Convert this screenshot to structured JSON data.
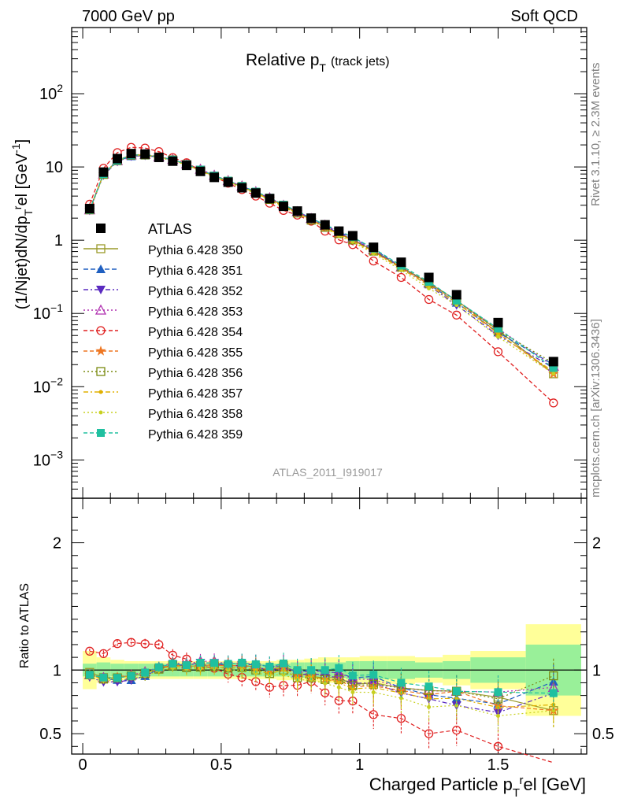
{
  "header": {
    "left": "7000 GeV pp",
    "right": "Soft QCD",
    "side_top": "Rivet 3.1.10, ≥ 2.3M events",
    "side_bottom": "mcplots.cern.ch [arXiv:1306.3436]"
  },
  "chart_data": {
    "type": "line",
    "title": "Relative p",
    "title_sub": "T",
    "title_note": "(track jets)",
    "ylabel": "(1/Njet)dN/dp",
    "ylabel_sub": "T",
    "ylabel_sup": "r",
    "ylabel_tail": "el [GeV",
    "ylabel_tail_sup": "-1",
    "ylabel_end": "]",
    "xlabel": "Charged Particle p",
    "xlabel_sub": "T",
    "xlabel_sup": "r",
    "xlabel_tail": "el [GeV]",
    "ratio_ylabel": "Ratio to ATLAS",
    "analysis_tag": "ATLAS_2011_I919017",
    "xlim": [
      -0.04,
      1.82
    ],
    "ylim_main": [
      0.0003,
      800
    ],
    "ylim_ratio": [
      0.34,
      2.35
    ],
    "yscale_main": "log",
    "x_ticks": [
      "0",
      "0.5",
      "1",
      "1.5"
    ],
    "y_ticks_main": [
      {
        "base": "10",
        "exp": "2"
      },
      {
        "base": "10",
        "exp": ""
      },
      {
        "base": "1",
        "exp": ""
      },
      {
        "base": "10",
        "exp": "−1"
      },
      {
        "base": "10",
        "exp": "−2"
      },
      {
        "base": "10",
        "exp": "−3"
      }
    ],
    "y_ticks_ratio": [
      "2",
      "1",
      "0.5"
    ],
    "legend_position": "left",
    "x": [
      0.025,
      0.075,
      0.125,
      0.175,
      0.225,
      0.275,
      0.325,
      0.375,
      0.425,
      0.475,
      0.525,
      0.575,
      0.625,
      0.675,
      0.725,
      0.775,
      0.825,
      0.875,
      0.925,
      0.975,
      1.05,
      1.15,
      1.25,
      1.35,
      1.5,
      1.7
    ],
    "data": {
      "name": "ATLAS",
      "color": "#000000",
      "values": [
        2.7,
        8.5,
        13.0,
        15.2,
        15.0,
        13.5,
        12.0,
        10.5,
        8.7,
        7.2,
        6.2,
        5.2,
        4.4,
        3.7,
        2.9,
        2.5,
        2.0,
        1.62,
        1.33,
        1.15,
        0.8,
        0.5,
        0.31,
        0.18,
        0.075,
        0.022
      ]
    },
    "band_x_edges": [
      0.0,
      0.05,
      0.1,
      0.15,
      0.2,
      0.25,
      0.3,
      0.35,
      0.4,
      0.45,
      0.5,
      0.55,
      0.6,
      0.65,
      0.7,
      0.75,
      0.8,
      0.85,
      0.9,
      0.95,
      1.0,
      1.1,
      1.2,
      1.3,
      1.4,
      1.6,
      1.8
    ],
    "band_stat": [
      0.05,
      0.06,
      0.05,
      0.05,
      0.05,
      0.05,
      0.05,
      0.05,
      0.05,
      0.05,
      0.05,
      0.05,
      0.05,
      0.05,
      0.05,
      0.06,
      0.06,
      0.06,
      0.06,
      0.07,
      0.07,
      0.07,
      0.06,
      0.07,
      0.1,
      0.2
    ],
    "band_total": [
      0.15,
      0.1,
      0.08,
      0.07,
      0.07,
      0.07,
      0.07,
      0.07,
      0.07,
      0.07,
      0.07,
      0.07,
      0.07,
      0.07,
      0.08,
      0.08,
      0.09,
      0.1,
      0.1,
      0.1,
      0.11,
      0.11,
      0.1,
      0.12,
      0.15,
      0.36
    ],
    "series": [
      {
        "name": "Pythia 6.428 350",
        "color": "#9a9a2a",
        "marker": "square-open",
        "dash": "",
        "values": [
          2.65,
          8.0,
          12.2,
          14.5,
          14.6,
          13.7,
          12.5,
          10.8,
          9.0,
          7.5,
          6.4,
          5.4,
          4.5,
          3.7,
          3.0,
          2.45,
          1.9,
          1.52,
          1.25,
          1.02,
          0.72,
          0.43,
          0.26,
          0.15,
          0.059,
          0.015
        ]
      },
      {
        "name": "Pythia 6.428 351",
        "color": "#1f5fc0",
        "marker": "triangle-up",
        "dash": "6,3",
        "values": [
          2.6,
          7.9,
          12.0,
          14.0,
          14.3,
          13.6,
          12.5,
          10.9,
          9.2,
          7.6,
          6.4,
          5.4,
          4.6,
          3.8,
          3.0,
          2.45,
          2.0,
          1.6,
          1.3,
          1.08,
          0.76,
          0.43,
          0.25,
          0.14,
          0.055,
          0.02
        ]
      },
      {
        "name": "Pythia 6.428 352",
        "color": "#5a2ac0",
        "marker": "triangle-down",
        "dash": "6,3,2,3",
        "values": [
          2.55,
          7.7,
          11.8,
          14.0,
          14.3,
          13.6,
          12.5,
          10.9,
          9.2,
          7.6,
          6.4,
          5.4,
          4.5,
          3.7,
          2.95,
          2.4,
          1.95,
          1.55,
          1.25,
          1.03,
          0.72,
          0.41,
          0.24,
          0.13,
          0.05,
          0.018
        ]
      },
      {
        "name": "Pythia 6.428 353",
        "color": "#b030b0",
        "marker": "triangle-open",
        "dash": "2,3",
        "values": [
          2.6,
          8.0,
          12.2,
          14.6,
          14.8,
          13.8,
          12.7,
          11.0,
          9.3,
          7.7,
          6.5,
          5.5,
          4.6,
          3.8,
          3.0,
          2.45,
          1.98,
          1.6,
          1.3,
          1.07,
          0.74,
          0.43,
          0.26,
          0.15,
          0.062,
          0.019
        ]
      },
      {
        "name": "Pythia 6.428 354",
        "color": "#e02020",
        "marker": "circle-open",
        "dash": "5,3",
        "values": [
          3.1,
          9.6,
          15.7,
          18.5,
          18.1,
          16.2,
          13.4,
          11.4,
          9.0,
          7.3,
          6.0,
          4.9,
          4.0,
          3.2,
          2.55,
          2.2,
          1.82,
          1.33,
          1.01,
          0.87,
          0.52,
          0.31,
          0.155,
          0.095,
          0.03,
          0.006
        ]
      },
      {
        "name": "Pythia 6.428 355",
        "color": "#ee7722",
        "marker": "star",
        "dash": "5,3",
        "values": [
          2.6,
          7.9,
          12.3,
          14.6,
          14.7,
          13.7,
          12.5,
          10.8,
          9.0,
          7.5,
          6.4,
          5.4,
          4.5,
          3.7,
          2.95,
          2.4,
          1.9,
          1.5,
          1.22,
          1.0,
          0.7,
          0.42,
          0.25,
          0.15,
          0.054,
          0.015
        ]
      },
      {
        "name": "Pythia 6.428 356",
        "color": "#7a8a10",
        "marker": "square-open",
        "dash": "2,3",
        "values": [
          2.6,
          7.9,
          12.2,
          14.5,
          14.6,
          13.6,
          12.4,
          10.7,
          8.9,
          7.4,
          6.3,
          5.3,
          4.4,
          3.6,
          2.9,
          2.35,
          1.88,
          1.5,
          1.23,
          1.01,
          0.71,
          0.43,
          0.26,
          0.15,
          0.058,
          0.021
        ]
      },
      {
        "name": "Pythia 6.428 357",
        "color": "#e0b000",
        "marker": "dot",
        "dash": "6,3,2,3",
        "values": [
          2.6,
          7.9,
          12.2,
          14.5,
          14.6,
          13.6,
          12.4,
          10.7,
          8.9,
          7.4,
          6.3,
          5.3,
          4.4,
          3.6,
          2.9,
          2.35,
          1.9,
          1.5,
          1.2,
          0.98,
          0.69,
          0.41,
          0.24,
          0.14,
          0.053,
          0.016
        ]
      },
      {
        "name": "Pythia 6.428 358",
        "color": "#c8d020",
        "marker": "dot",
        "dash": "2,3",
        "values": [
          2.55,
          7.8,
          12.0,
          14.2,
          14.3,
          13.4,
          12.2,
          10.6,
          8.8,
          7.3,
          6.2,
          5.2,
          4.3,
          3.55,
          2.8,
          2.3,
          1.85,
          1.45,
          1.15,
          0.95,
          0.66,
          0.39,
          0.22,
          0.13,
          0.048,
          0.015
        ]
      },
      {
        "name": "Pythia 6.428 359",
        "color": "#20c0a0",
        "marker": "square",
        "dash": "5,3",
        "values": [
          2.6,
          8.0,
          12.2,
          14.5,
          14.7,
          13.8,
          12.6,
          10.9,
          9.2,
          7.6,
          6.5,
          5.5,
          4.6,
          3.8,
          3.05,
          2.5,
          2.0,
          1.62,
          1.35,
          1.1,
          0.77,
          0.45,
          0.27,
          0.15,
          0.062,
          0.018
        ]
      }
    ]
  }
}
